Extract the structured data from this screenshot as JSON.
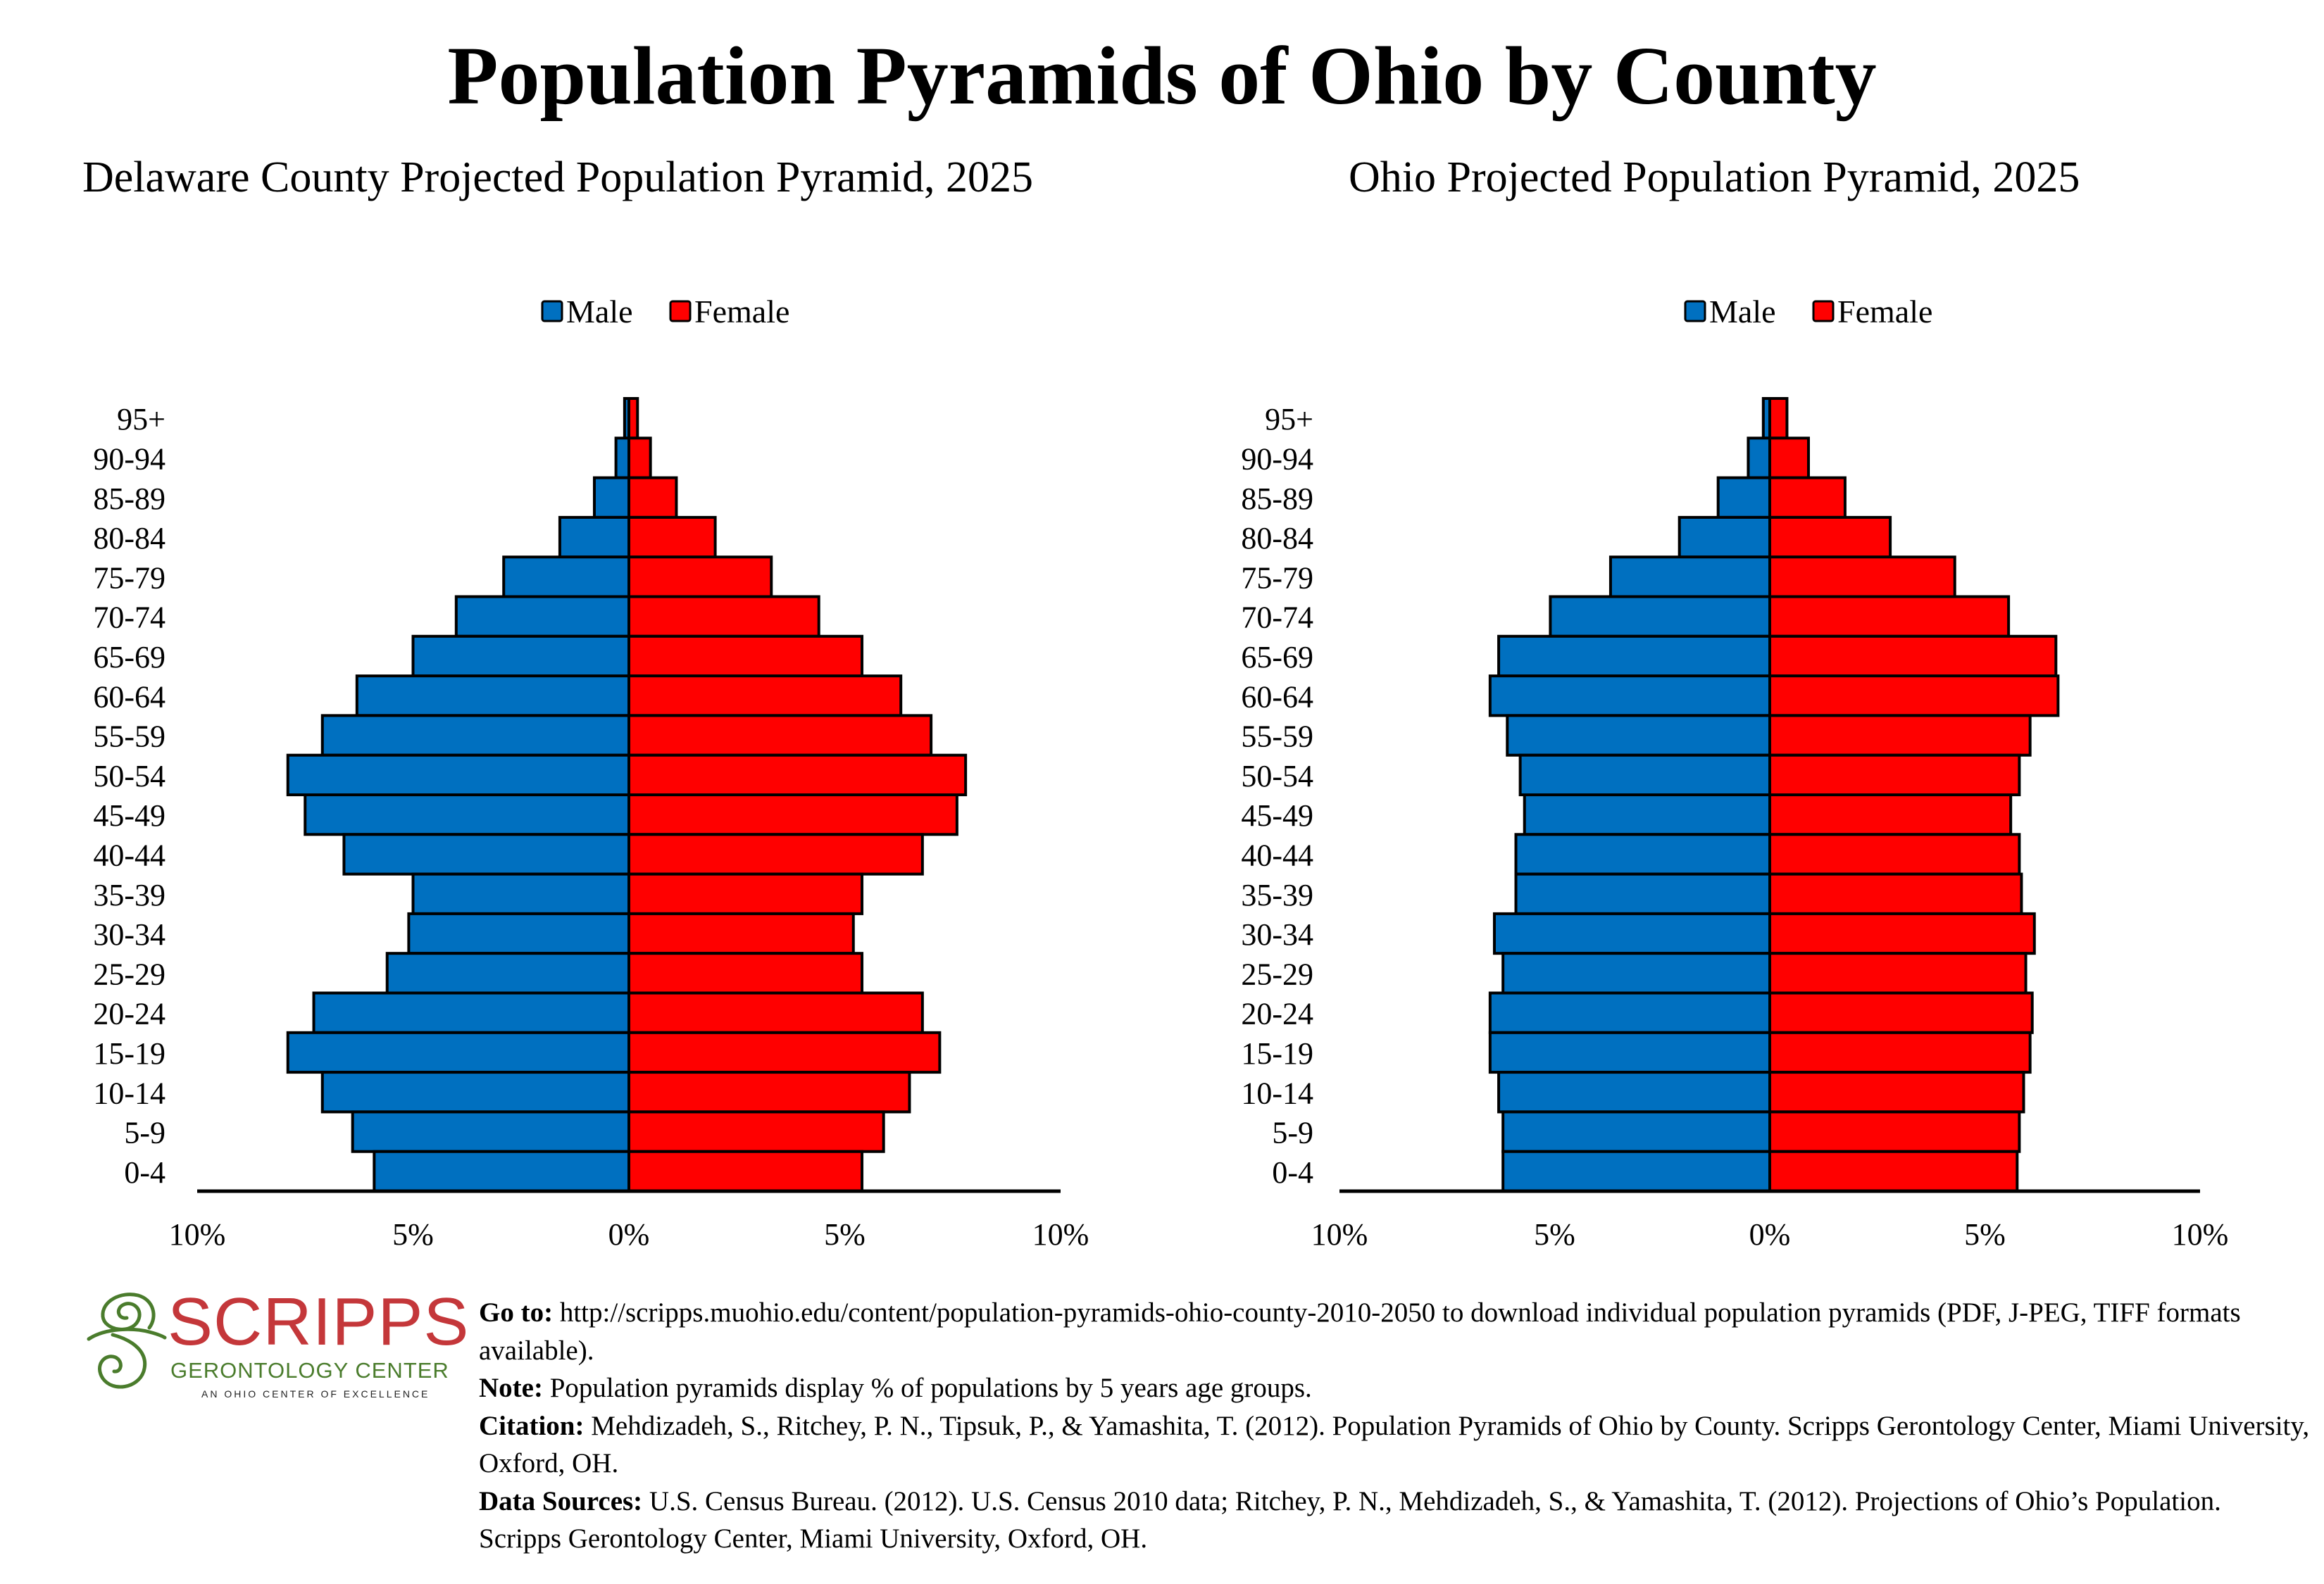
{
  "page": {
    "title": "Population Pyramids of Ohio by County"
  },
  "chart_data": [
    {
      "type": "bar",
      "subtype": "population-pyramid",
      "title": "Delaware County Projected Population Pyramid, 2025",
      "legend": {
        "position": "top-center",
        "entries": [
          "Male",
          "Female"
        ]
      },
      "xlabel": "",
      "ylabel": "",
      "xlim": [
        -10,
        10
      ],
      "x_ticks": [
        "10%",
        "5%",
        "0%",
        "5%",
        "10%"
      ],
      "x_tick_values": [
        -10,
        -5,
        0,
        5,
        10
      ],
      "grid": false,
      "categories": [
        "95+",
        "90-94",
        "85-89",
        "80-84",
        "75-79",
        "70-74",
        "65-69",
        "60-64",
        "55-59",
        "50-54",
        "45-49",
        "40-44",
        "35-39",
        "30-34",
        "25-29",
        "20-24",
        "15-19",
        "10-14",
        "5-9",
        "0-4"
      ],
      "series": [
        {
          "name": "Male",
          "color": "#0070c0",
          "values": [
            0.1,
            0.3,
            0.8,
            1.6,
            2.9,
            4.0,
            5.0,
            6.3,
            7.1,
            7.9,
            7.5,
            6.6,
            5.0,
            5.1,
            5.6,
            7.3,
            7.9,
            7.1,
            6.4,
            5.9
          ]
        },
        {
          "name": "Female",
          "color": "#ff0000",
          "values": [
            0.2,
            0.5,
            1.1,
            2.0,
            3.3,
            4.4,
            5.4,
            6.3,
            7.0,
            7.8,
            7.6,
            6.8,
            5.4,
            5.2,
            5.4,
            6.8,
            7.2,
            6.5,
            5.9,
            5.4
          ]
        }
      ]
    },
    {
      "type": "bar",
      "subtype": "population-pyramid",
      "title": "Ohio Projected Population Pyramid, 2025",
      "legend": {
        "position": "top-center",
        "entries": [
          "Male",
          "Female"
        ]
      },
      "xlabel": "",
      "ylabel": "",
      "xlim": [
        -10,
        10
      ],
      "x_ticks": [
        "10%",
        "5%",
        "0%",
        "5%",
        "10%"
      ],
      "x_tick_values": [
        -10,
        -5,
        0,
        5,
        10
      ],
      "grid": false,
      "categories": [
        "95+",
        "90-94",
        "85-89",
        "80-84",
        "75-79",
        "70-74",
        "65-69",
        "60-64",
        "55-59",
        "50-54",
        "45-49",
        "40-44",
        "35-39",
        "30-34",
        "25-29",
        "20-24",
        "15-19",
        "10-14",
        "5-9",
        "0-4"
      ],
      "series": [
        {
          "name": "Male",
          "color": "#0070c0",
          "values": [
            0.15,
            0.5,
            1.2,
            2.1,
            3.7,
            5.1,
            6.3,
            6.5,
            6.1,
            5.8,
            5.7,
            5.9,
            5.9,
            6.4,
            6.2,
            6.5,
            6.5,
            6.3,
            6.2,
            6.2
          ]
        },
        {
          "name": "Female",
          "color": "#ff0000",
          "values": [
            0.4,
            0.9,
            1.75,
            2.8,
            4.3,
            5.55,
            6.65,
            6.7,
            6.05,
            5.8,
            5.6,
            5.8,
            5.85,
            6.15,
            5.95,
            6.1,
            6.05,
            5.9,
            5.8,
            5.75
          ]
        }
      ]
    }
  ],
  "logo": {
    "word": "SCRIPPS",
    "subtitle": "GERONTOLOGY CENTER",
    "tagline": "AN OHIO CENTER OF EXCELLENCE",
    "colors": {
      "word": "#c4373a",
      "subtitle": "#4a7c2c",
      "swirl": "#4a7c2c"
    }
  },
  "footer": {
    "goto_label": "Go to:",
    "goto_text": " http://scripps.muohio.edu/content/population-pyramids-ohio-county-2010-2050 to download individual population pyramids (PDF, J-PEG, TIFF formats available).",
    "note_label": "Note:",
    "note_text": " Population pyramids display % of populations by 5 years age groups.",
    "citation_label": "Citation:",
    "citation_text": " Mehdizadeh, S., Ritchey, P. N., Tipsuk, P., & Yamashita, T. (2012). Population Pyramids of Ohio by County. Scripps Gerontology Center, Miami University, Oxford, OH.",
    "sources_label": "Data Sources:",
    "sources_text": " U.S. Census Bureau. (2012). U.S. Census 2010 data; Ritchey, P. N., Mehdizadeh, S., & Yamashita, T. (2012). Projections of Ohio’s Population. Scripps Gerontology Center, Miami University, Oxford, OH."
  }
}
